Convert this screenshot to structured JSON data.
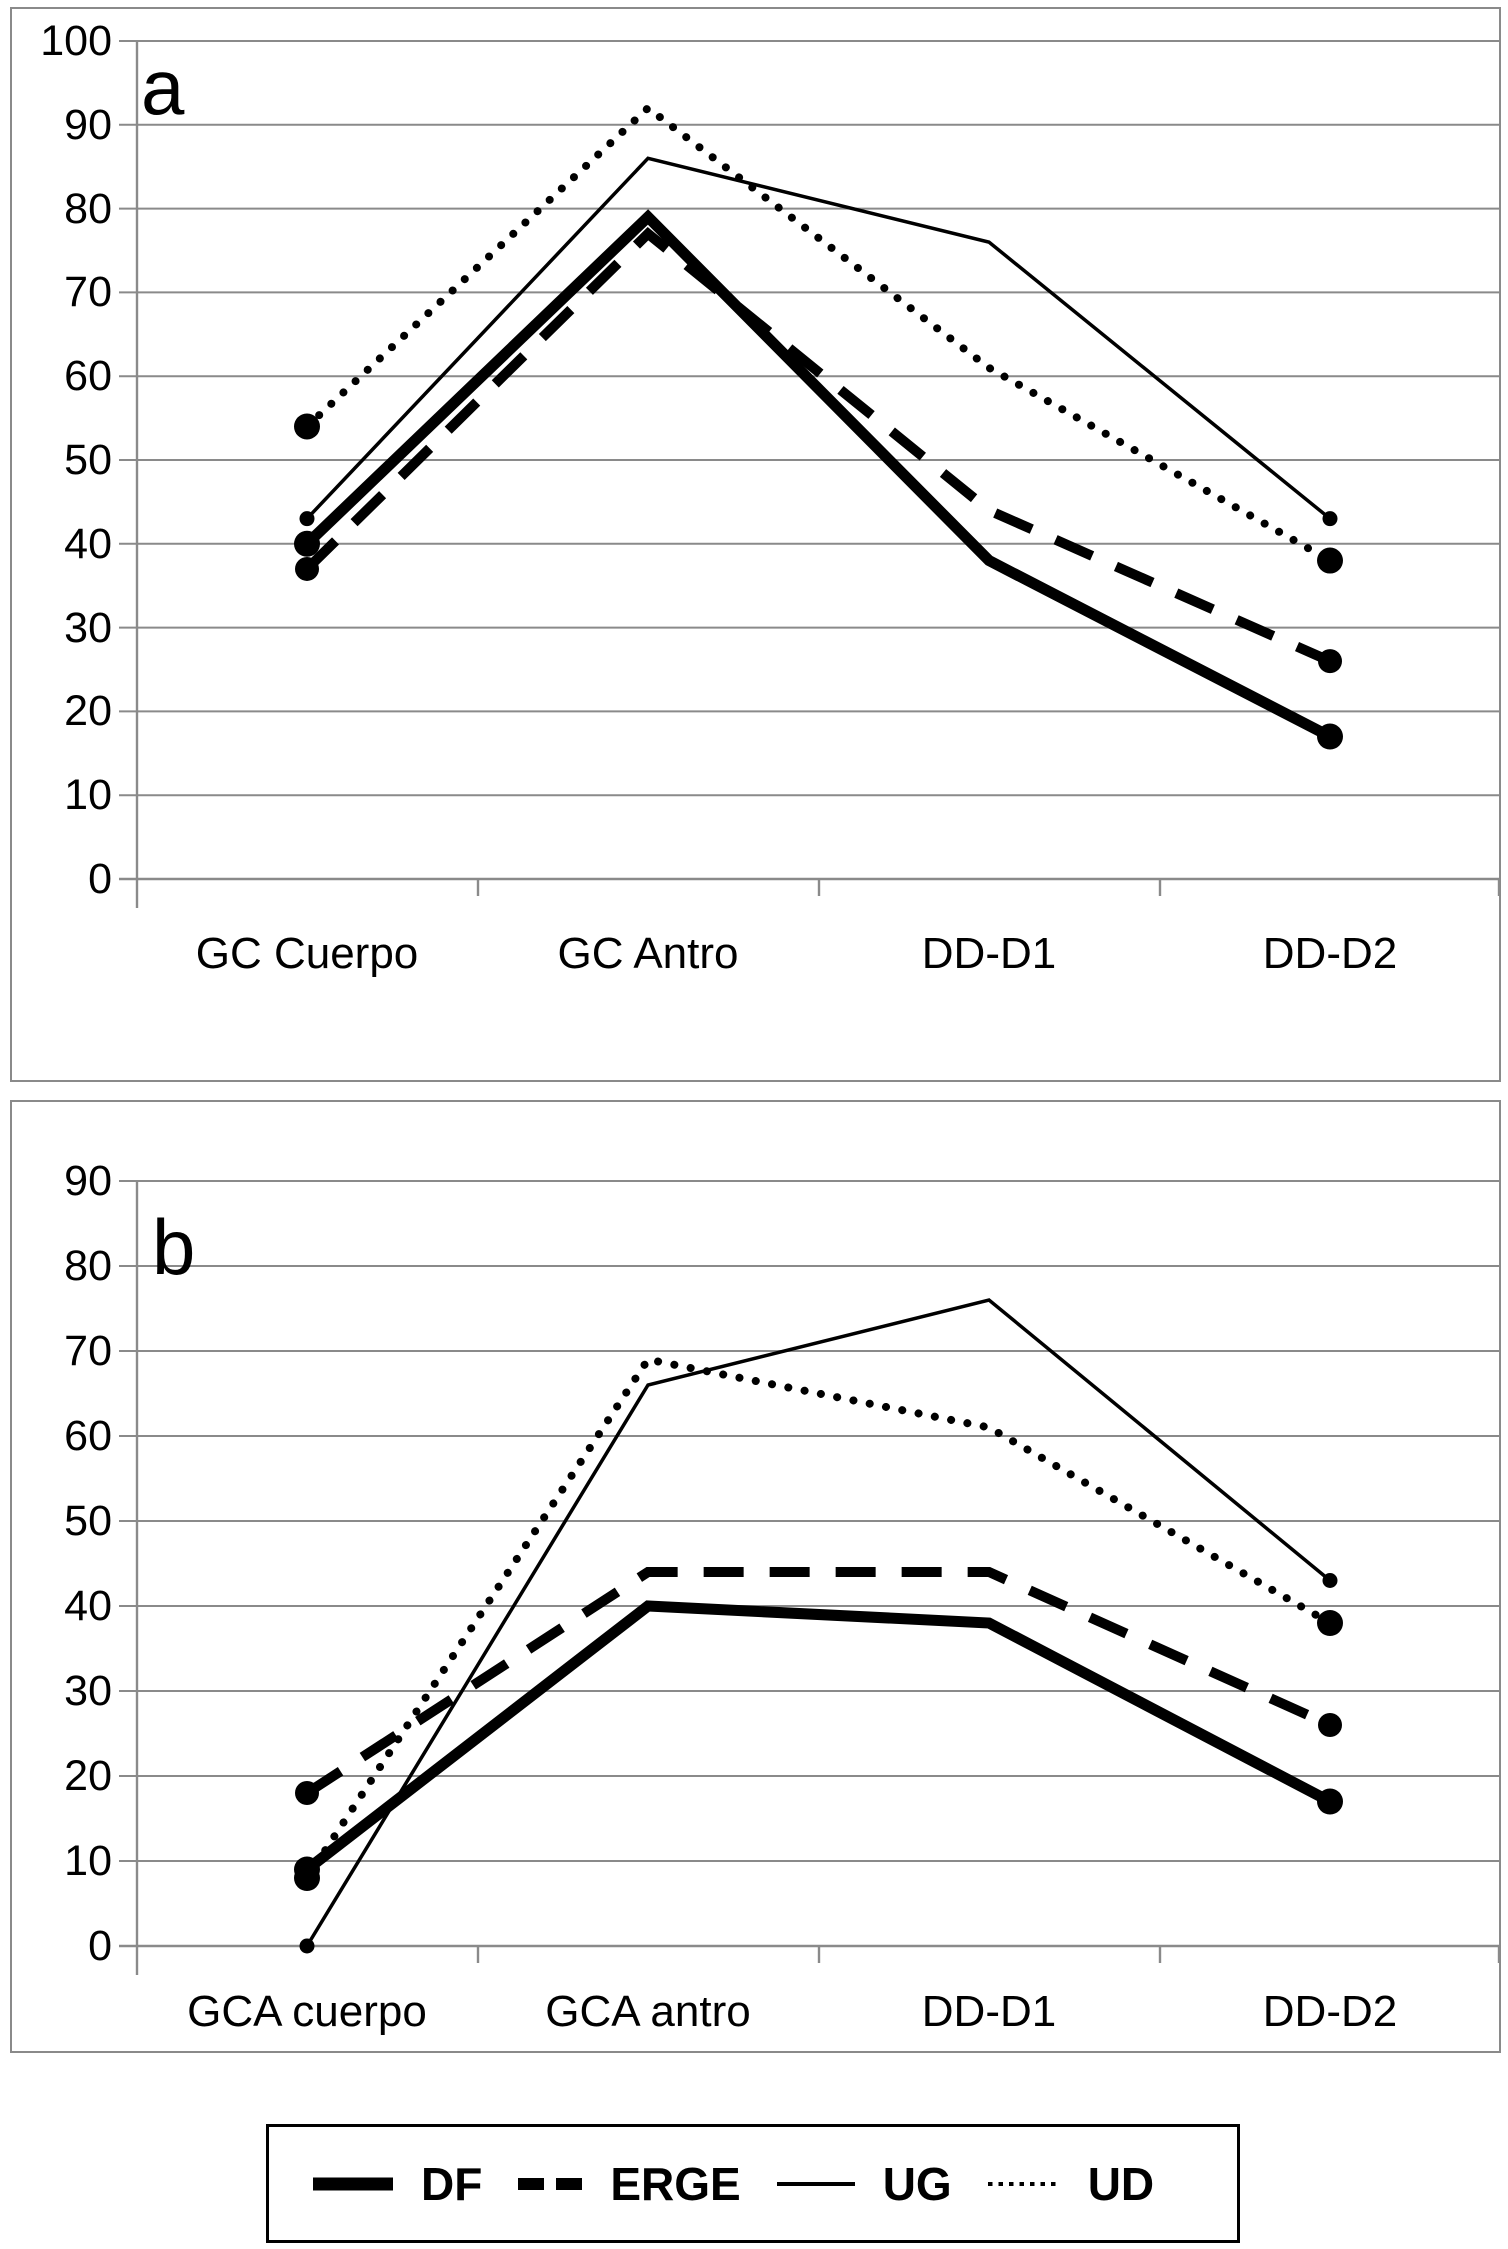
{
  "figure": {
    "panels": [
      {
        "label": "a",
        "y_ticks": [
          100,
          90,
          80,
          70,
          60,
          50,
          40,
          30,
          20,
          10,
          0
        ],
        "categories": [
          "GC Cuerpo",
          "GC Antro",
          "DD-D1",
          "DD-D2"
        ]
      },
      {
        "label": "b",
        "y_ticks": [
          90,
          80,
          70,
          60,
          50,
          40,
          30,
          20,
          10,
          0
        ],
        "categories": [
          "GCA cuerpo",
          "GCA antro",
          "DD-D1",
          "DD-D2"
        ]
      }
    ],
    "legend": {
      "items": [
        {
          "label": "DF",
          "style": "thick-solid"
        },
        {
          "label": "ERGE",
          "style": "dashed"
        },
        {
          "label": "UG",
          "style": "thin-solid"
        },
        {
          "label": "UD",
          "style": "dotted"
        }
      ]
    },
    "colors": {
      "line": "#000000",
      "grid": "#8a8a8a",
      "panel_border": "#8a8a8a",
      "legend_border": "#000000",
      "background": "#ffffff"
    }
  },
  "chart_data": [
    {
      "type": "line",
      "panel": "a",
      "title": "a",
      "categories": [
        "GC Cuerpo",
        "GC Antro",
        "DD-D1",
        "DD-D2"
      ],
      "series": [
        {
          "name": "DF",
          "values": [
            40,
            79,
            38,
            17
          ]
        },
        {
          "name": "ERGE",
          "values": [
            37,
            77,
            44,
            26
          ]
        },
        {
          "name": "UG",
          "values": [
            43,
            86,
            76,
            43
          ]
        },
        {
          "name": "UD",
          "values": [
            54,
            92,
            61,
            38
          ]
        }
      ],
      "ylim": [
        0,
        100
      ],
      "ytick_step": 10,
      "grid": true,
      "markers": "endpoints-only",
      "legend_position": "below-figure"
    },
    {
      "type": "line",
      "panel": "b",
      "title": "b",
      "categories": [
        "GCA cuerpo",
        "GCA antro",
        "DD-D1",
        "DD-D2"
      ],
      "series": [
        {
          "name": "DF",
          "values": [
            9,
            40,
            38,
            17
          ]
        },
        {
          "name": "ERGE",
          "values": [
            18,
            44,
            44,
            26
          ]
        },
        {
          "name": "UG",
          "values": [
            0,
            66,
            76,
            43
          ]
        },
        {
          "name": "UD",
          "values": [
            8,
            69,
            61,
            38
          ]
        }
      ],
      "ylim": [
        0,
        90
      ],
      "ytick_step": 10,
      "grid": true,
      "markers": "endpoints-only",
      "legend_position": "below-figure"
    }
  ]
}
